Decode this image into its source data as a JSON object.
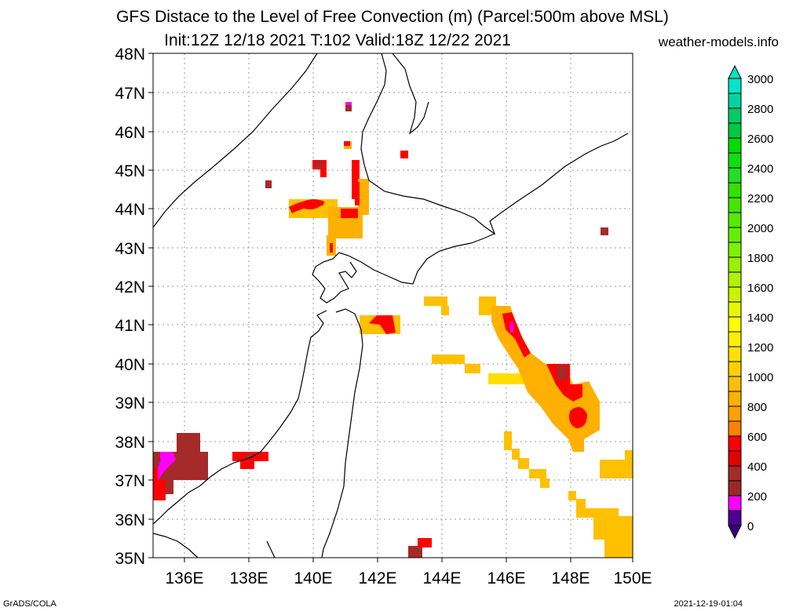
{
  "title_line1": "GFS Distace to the Level of Free Convection (m) (Parcel:500m above MSL)",
  "title_line2": "Init:12Z 12/18 2021 T:102 Valid:18Z 12/22 2021",
  "site": "weather-models.info",
  "footer_left": "GrADS/COLA",
  "footer_right": "2021-12-19-01:04",
  "lat_labels": [
    "48N",
    "47N",
    "46N",
    "45N",
    "44N",
    "43N",
    "42N",
    "41N",
    "40N",
    "39N",
    "38N",
    "37N",
    "36N",
    "35N"
  ],
  "lon_labels": [
    "136E",
    "138E",
    "140E",
    "142E",
    "144E",
    "146E",
    "148E",
    "150E"
  ],
  "colorbar": {
    "labels": [
      "3000",
      "2800",
      "2600",
      "2400",
      "2200",
      "2000",
      "1800",
      "1600",
      "1400",
      "1200",
      "1000",
      "800",
      "600",
      "400",
      "200",
      "0"
    ],
    "colors": [
      "#00e5c8",
      "#00cc66",
      "#00dd00",
      "#22e022",
      "#44e600",
      "#66ee00",
      "#99f000",
      "#ccf200",
      "#ffff00",
      "#ffe000",
      "#ffc000",
      "#ffa000",
      "#ff0000",
      "#a52a2a",
      "#ff00ff",
      "#3a0080"
    ]
  }
}
